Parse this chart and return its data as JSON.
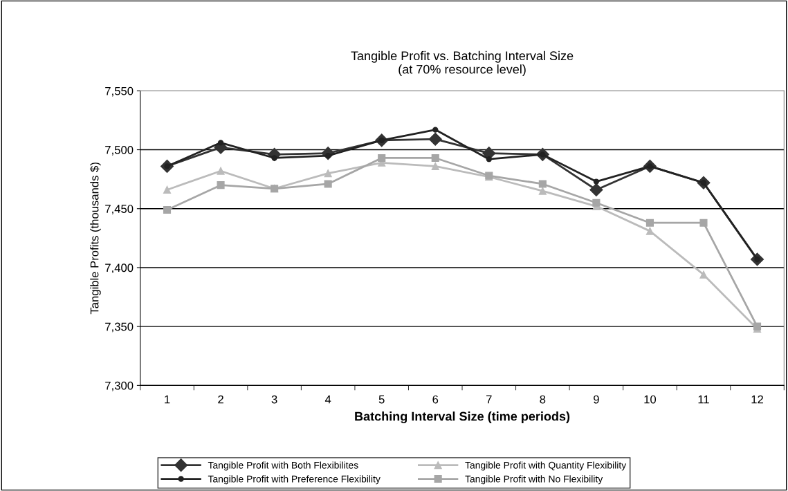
{
  "chart_data": {
    "type": "line",
    "title": "Tangible Profit vs. Batching Interval Size\n(at 70% resource level)",
    "xlabel": "Batching Interval Size (time periods)",
    "ylabel": "Tangible Profits (thousands $)",
    "categories": [
      "1",
      "2",
      "3",
      "4",
      "5",
      "6",
      "7",
      "8",
      "9",
      "10",
      "11",
      "12"
    ],
    "series": [
      {
        "name": "Tangible Profit with Both Flexibilites",
        "color": "#333333",
        "marker": "diamond",
        "values": [
          7486,
          7502,
          7496,
          7497,
          7508,
          7509,
          7497,
          7496,
          7466,
          7486,
          7472,
          7407
        ]
      },
      {
        "name": "Tangible Profit with Preference Flexibility",
        "color": "#222222",
        "marker": "circle",
        "values": [
          7486,
          7506,
          7493,
          7495,
          7508,
          7517,
          7492,
          7496,
          7473,
          7486,
          7472,
          7407
        ]
      },
      {
        "name": "Tangible Profit with Quantity Flexibility",
        "color": "#bbbbbb",
        "marker": "triangle",
        "values": [
          7466,
          7482,
          7467,
          7480,
          7489,
          7486,
          7477,
          7465,
          7452,
          7431,
          7394,
          7348
        ]
      },
      {
        "name": "Tangible Profit with No Flexibility",
        "color": "#a6a6a6",
        "marker": "square",
        "values": [
          7449,
          7470,
          7467,
          7471,
          7493,
          7493,
          7478,
          7471,
          7455,
          7438,
          7438,
          7350
        ]
      }
    ],
    "ylim": [
      7300,
      7550
    ],
    "yticks": [
      {
        "value": 7300,
        "label": "7,300"
      },
      {
        "value": 7350,
        "label": "7,350"
      },
      {
        "value": 7400,
        "label": "7,400"
      },
      {
        "value": 7450,
        "label": "7,450"
      },
      {
        "value": 7500,
        "label": "7,500"
      },
      {
        "value": 7550,
        "label": "7,550"
      }
    ],
    "grid": "y",
    "legend": "bottom",
    "line_style": "solid"
  }
}
